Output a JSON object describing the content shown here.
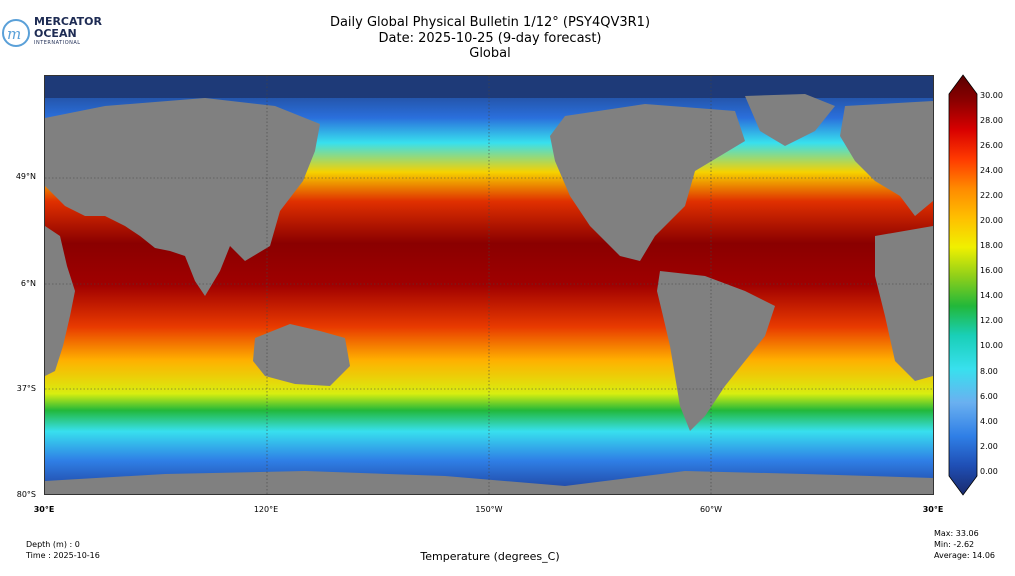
{
  "logo": {
    "line1": "MERCATOR",
    "line2": "OCEAN",
    "line3": "INTERNATIONAL",
    "brand_color": "#1d2b53",
    "accent_color": "#5aa0d8"
  },
  "title": {
    "line1": "Daily Global Physical Bulletin 1/12° (PSY4QV3R1)",
    "line2": "Date: 2025-10-25 (9-day forecast)",
    "line3": "Global"
  },
  "map": {
    "lat_labels": [
      "49°N",
      "6°N",
      "37°S",
      "80°S"
    ],
    "lon_labels": [
      "30°E",
      "120°E",
      "150°W",
      "60°W",
      "30°E"
    ],
    "land_color": "#808080",
    "ice_color": "#1e3a78",
    "grid": "dotted"
  },
  "colorbar": {
    "ticks": [
      "30.00",
      "28.00",
      "26.00",
      "24.00",
      "22.00",
      "20.00",
      "18.00",
      "16.00",
      "14.00",
      "12.00",
      "10.00",
      "8.00",
      "6.00",
      "4.00",
      "2.00",
      "0.00"
    ],
    "min": 0,
    "max": 30,
    "colors": [
      "#1a2a6c",
      "#1f4fb5",
      "#2f7fe6",
      "#6ab0f0",
      "#38e0ee",
      "#19cfb7",
      "#22b83a",
      "#8ecf1a",
      "#f0f000",
      "#ffbf00",
      "#ff8a00",
      "#ff3a00",
      "#d80000",
      "#8a0000",
      "#5a0000"
    ]
  },
  "meta": {
    "depth": "Depth (m) : 0",
    "time": "Time : 2025-10-16",
    "max": "Max: 33.06",
    "min": "Min: -2.62",
    "average": "Average: 14.06"
  },
  "xlabel": "Temperature (degrees_C)"
}
